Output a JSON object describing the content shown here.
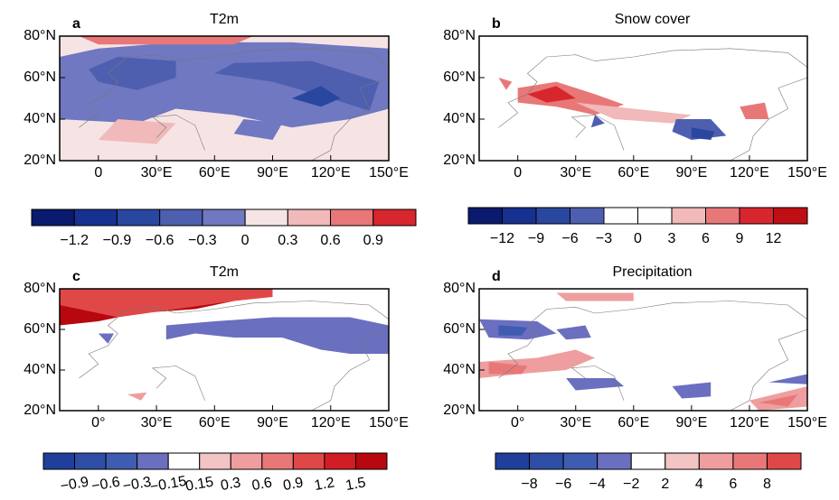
{
  "panels": [
    {
      "label": "a",
      "title": "T2m",
      "xlim": [
        -20,
        150
      ],
      "ylim": [
        20,
        80
      ],
      "xticks": [
        {
          "value": 0,
          "label": "0"
        },
        {
          "value": 30,
          "label": "30°E"
        },
        {
          "value": 60,
          "label": "60°E"
        },
        {
          "value": 90,
          "label": "90°E"
        },
        {
          "value": 120,
          "label": "120°E"
        },
        {
          "value": 150,
          "label": "150°E"
        }
      ],
      "yticks": [
        {
          "value": 20,
          "label": "20°N"
        },
        {
          "value": 40,
          "label": "40°N"
        },
        {
          "value": 60,
          "label": "60°N"
        },
        {
          "value": 80,
          "label": "80°N"
        }
      ],
      "colorbar": {
        "colors": [
          "#0a1a6e",
          "#16318f",
          "#2a47a0",
          "#4e5fb0",
          "#6f78c0",
          "#f6e4e4",
          "#f1b9b9",
          "#e87878",
          "#d8262f"
        ],
        "ticks": [
          {
            "value": -1.2,
            "label": "−1.2"
          },
          {
            "value": -0.9,
            "label": "−0.9"
          },
          {
            "value": -0.6,
            "label": "−0.6"
          },
          {
            "value": -0.3,
            "label": "−0.3"
          },
          0,
          0.3,
          0.6,
          0.9
        ]
      }
    },
    {
      "label": "b",
      "title": "Snow cover",
      "xlim": [
        -20,
        150
      ],
      "ylim": [
        20,
        80
      ],
      "xticks": [
        {
          "value": 0,
          "label": "0"
        },
        {
          "value": 30,
          "label": "30°E"
        },
        {
          "value": 60,
          "label": "60°E"
        },
        {
          "value": 90,
          "label": "90°E"
        },
        {
          "value": 120,
          "label": "120°E"
        },
        {
          "value": 150,
          "label": "150°E"
        }
      ],
      "yticks": [
        {
          "value": 20,
          "label": "20°N"
        },
        {
          "value": 40,
          "label": "40°N"
        },
        {
          "value": 60,
          "label": "60°N"
        },
        {
          "value": 80,
          "label": "80°N"
        }
      ],
      "colorbar": {
        "colors": [
          "#0a1a6e",
          "#16318f",
          "#2a47a0",
          "#4e5fb0",
          "#ffffff",
          "#ffffff",
          "#f1b9b9",
          "#e87878",
          "#d8262f",
          "#c00f14"
        ],
        "ticks": [
          {
            "value": -12,
            "label": "−12"
          },
          {
            "value": -9,
            "label": "−9"
          },
          {
            "value": -6,
            "label": "−6"
          },
          {
            "value": -3,
            "label": "−3"
          },
          0,
          3,
          6,
          9,
          12
        ]
      }
    },
    {
      "label": "c",
      "title": "T2m",
      "xlim": [
        -20,
        150
      ],
      "ylim": [
        20,
        80
      ],
      "xticks": [
        {
          "value": 0,
          "label": "0°"
        },
        {
          "value": 30,
          "label": "30°E"
        },
        {
          "value": 60,
          "label": "60°E"
        },
        {
          "value": 90,
          "label": "90°E"
        },
        {
          "value": 120,
          "label": "120°E"
        },
        {
          "value": 150,
          "label": "150°E"
        }
      ],
      "yticks": [
        {
          "value": 20,
          "label": "20°N"
        },
        {
          "value": 40,
          "label": "40°N"
        },
        {
          "value": 60,
          "label": "60°N"
        },
        {
          "value": 80,
          "label": "80°N"
        }
      ],
      "colorbar": {
        "colors": [
          "#1f3f9a",
          "#2e4ea6",
          "#3f5db0",
          "#6a6fc0",
          "#ffffff",
          "#f3c4c4",
          "#ee9e9e",
          "#e87878",
          "#e04848",
          "#d21d24",
          "#b8070f"
        ],
        "ticks": [
          {
            "value": -0.9,
            "label": "−0.9"
          },
          {
            "value": -0.6,
            "label": "−0.6"
          },
          {
            "value": -0.3,
            "label": "−0.3"
          },
          {
            "value": -0.15,
            "label": "−0.15"
          },
          0.15,
          0.3,
          0.6,
          0.9,
          1.2,
          1.5
        ]
      }
    },
    {
      "label": "d",
      "title": "Precipitation",
      "xlim": [
        -20,
        150
      ],
      "ylim": [
        20,
        80
      ],
      "xticks": [
        {
          "value": 0,
          "label": "0°"
        },
        {
          "value": 30,
          "label": "30°E"
        },
        {
          "value": 60,
          "label": "60°E"
        },
        {
          "value": 90,
          "label": "90°E"
        },
        {
          "value": 120,
          "label": "120°E"
        },
        {
          "value": 150,
          "label": "150°E"
        }
      ],
      "yticks": [
        {
          "value": 20,
          "label": "20°N"
        },
        {
          "value": 40,
          "label": "40°N"
        },
        {
          "value": 60,
          "label": "60°N"
        },
        {
          "value": 80,
          "label": "80°N"
        }
      ],
      "colorbar": {
        "colors": [
          "#1f3f9a",
          "#2e4ea6",
          "#3f5db0",
          "#6a6fc0",
          "#ffffff",
          "#f3c4c4",
          "#ee9e9e",
          "#e87878",
          "#e04848"
        ],
        "ticks": [
          {
            "value": -8,
            "label": "−8"
          },
          {
            "value": -6,
            "label": "−6"
          },
          {
            "value": -4,
            "label": "−4"
          },
          {
            "value": -2,
            "label": "−2"
          },
          2,
          4,
          6,
          8
        ]
      }
    }
  ]
}
